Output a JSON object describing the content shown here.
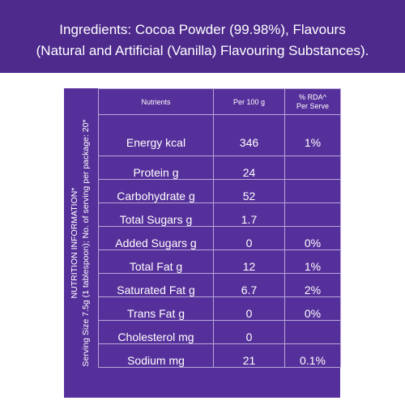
{
  "ingredients": {
    "line1": "Ingredients: Cocoa Powder (99.98%), Flavours",
    "line2": "(Natural and Artificial (Vanilla) Flavouring Substances)."
  },
  "side_caption": {
    "line1": "NUTRITION INFORMATION*",
    "line2": "Serving Size 7.5g (1 tablespoon); No. of serving per package: 20*"
  },
  "table": {
    "headers": {
      "nutrients": "Nutrients",
      "per100": "Per 100 g",
      "rda_line1": "% RDA^",
      "rda_line2": "Per Serve"
    },
    "rows": [
      {
        "name": "Energy kcal",
        "per100": "346",
        "rda": "1%"
      },
      {
        "name": "Protein g",
        "per100": "24",
        "rda": ""
      },
      {
        "name": "Carbohydrate g",
        "per100": "52",
        "rda": ""
      },
      {
        "name": "Total Sugars g",
        "per100": "1.7",
        "rda": ""
      },
      {
        "name": "Added Sugars g",
        "per100": "0",
        "rda": "0%"
      },
      {
        "name": "Total Fat g",
        "per100": "12",
        "rda": "1%"
      },
      {
        "name": "Saturated Fat g",
        "per100": "6.7",
        "rda": "2%"
      },
      {
        "name": "Trans Fat g",
        "per100": "0",
        "rda": "0%"
      },
      {
        "name": "Cholesterol mg",
        "per100": "0",
        "rda": ""
      },
      {
        "name": "Sodium mg",
        "per100": "21",
        "rda": "0.1%"
      }
    ]
  },
  "colors": {
    "banner": "#4d2a8c",
    "panel": "#56309a",
    "grid": "#b8a6d9",
    "text": "#ffffff"
  }
}
